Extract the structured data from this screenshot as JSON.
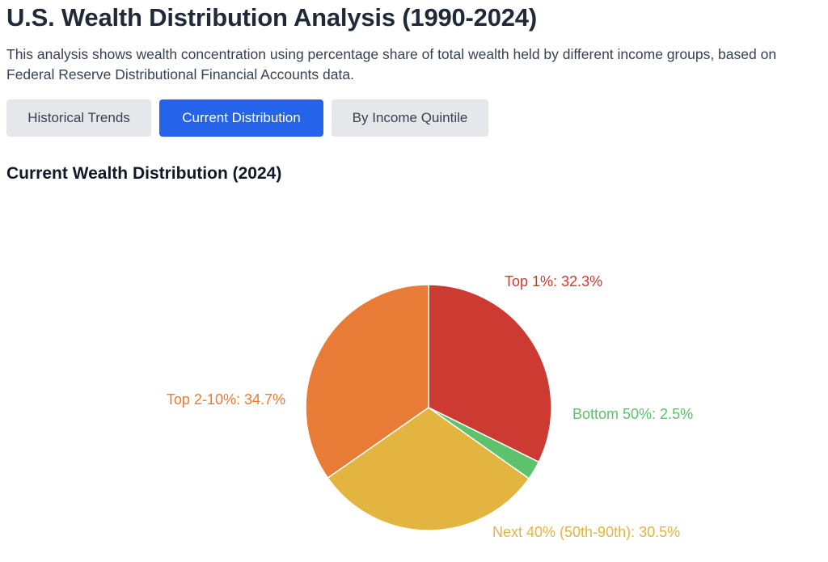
{
  "header": {
    "title": "U.S. Wealth Distribution Analysis (1990-2024)",
    "description": "This analysis shows wealth concentration using percentage share of total wealth held by different income groups, based on Federal Reserve Distributional Financial Accounts data."
  },
  "tabs": [
    {
      "label": "Historical Trends",
      "active": false
    },
    {
      "label": "Current Distribution",
      "active": true
    },
    {
      "label": "By Income Quintile",
      "active": false
    }
  ],
  "chart_data": {
    "type": "pie",
    "title": "Current Wealth Distribution (2024)",
    "slices": [
      {
        "name": "Top 1%",
        "value": 32.3,
        "label": "Top 1%: 32.3%",
        "color": "#cc3a32"
      },
      {
        "name": "Bottom 50%",
        "value": 2.5,
        "label": "Bottom 50%: 2.5%",
        "color": "#5cc26b"
      },
      {
        "name": "Next 40% (50th-90th)",
        "value": 30.5,
        "label": "Next 40% (50th-90th): 30.5%",
        "color": "#e3b43f"
      },
      {
        "name": "Top 2-10%",
        "value": 34.7,
        "label": "Top 2-10%: 34.7%",
        "color": "#e87b35"
      }
    ],
    "start": "12 o'clock",
    "direction": "clockwise",
    "legend": "none (labels beside slices)"
  }
}
